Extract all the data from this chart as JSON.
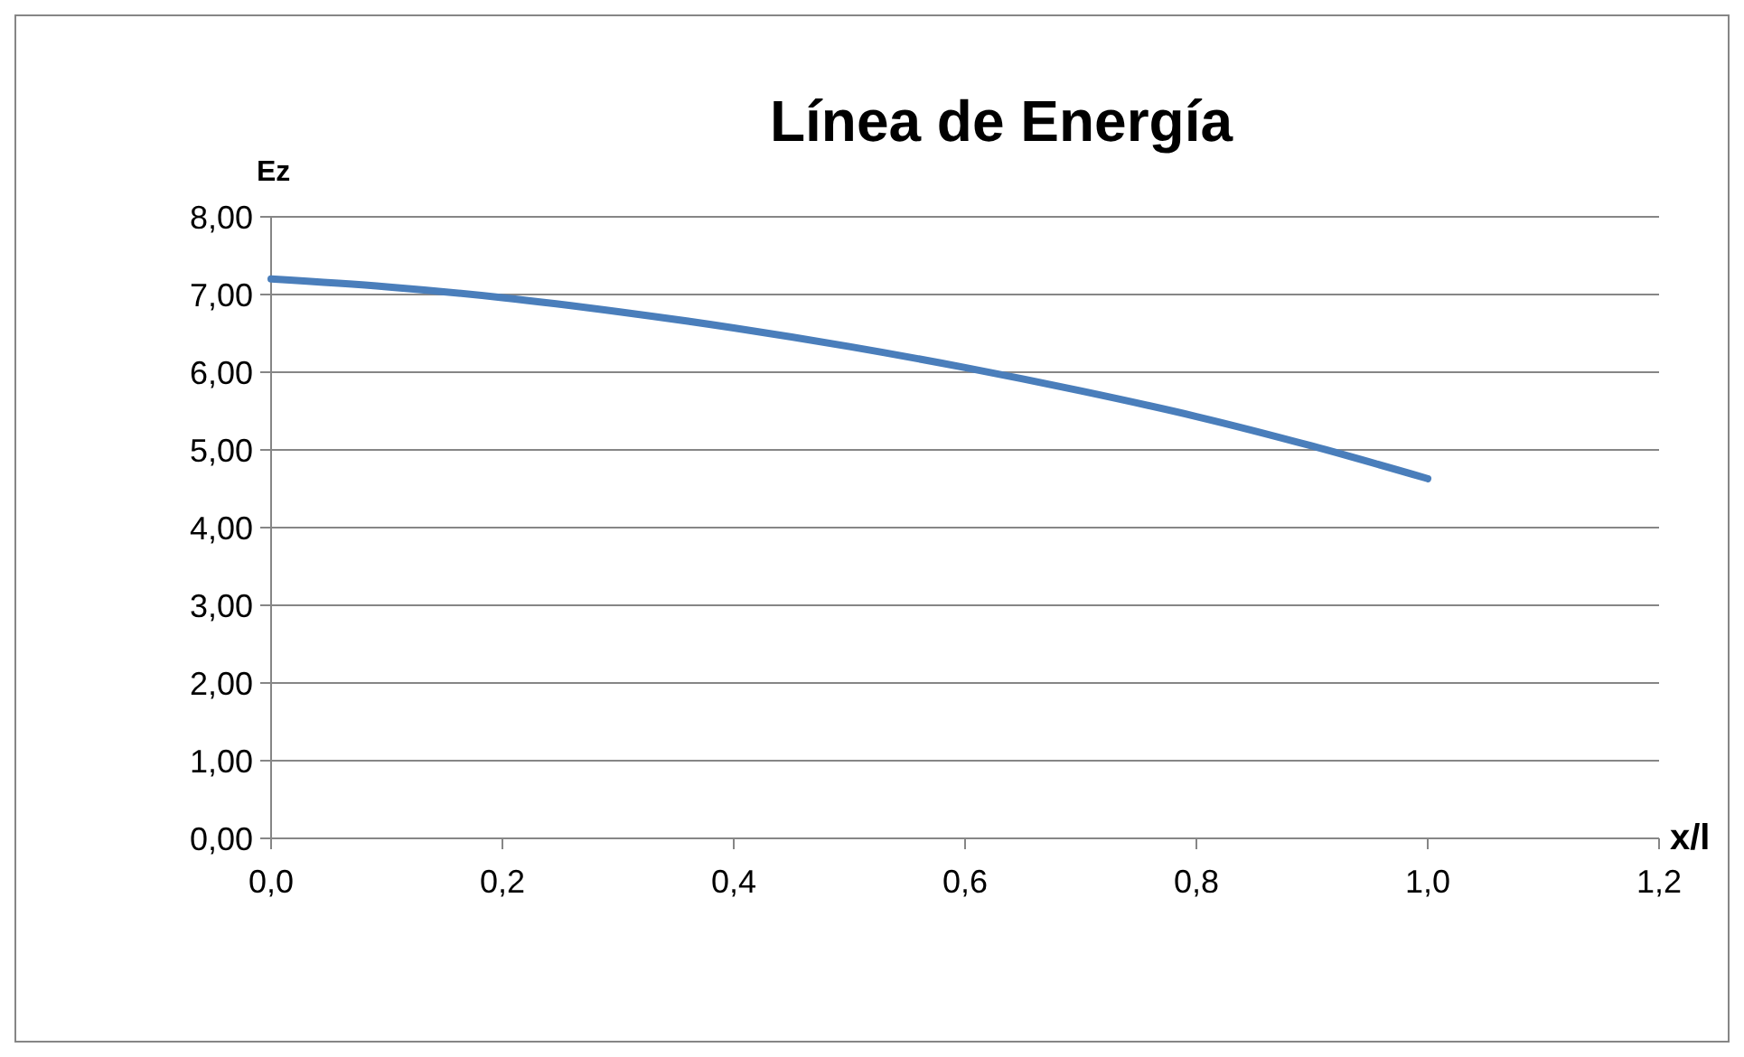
{
  "chart_data": {
    "type": "line",
    "title": "Línea de Energía",
    "xlabel": "x/l",
    "ylabel": "Ez",
    "x": [
      0,
      0.1,
      0.2,
      0.3,
      0.4,
      0.5,
      0.6,
      0.7,
      0.8,
      0.9,
      1.0
    ],
    "series": [
      {
        "color": "#4a7ebb",
        "values": [
          7.2,
          7.1,
          6.96,
          6.78,
          6.57,
          6.33,
          6.06,
          5.76,
          5.43,
          5.05,
          4.63
        ]
      }
    ],
    "xlim": [
      0,
      1.2
    ],
    "xticks": [
      {
        "value": 0,
        "label": "0,0"
      },
      {
        "value": 0.2,
        "label": "0,2"
      },
      {
        "value": 0.4,
        "label": "0,4"
      },
      {
        "value": 0.6,
        "label": "0,6"
      },
      {
        "value": 0.8,
        "label": "0,8"
      },
      {
        "value": 1,
        "label": "1,0"
      },
      {
        "value": 1.2,
        "label": "1,2"
      }
    ],
    "ylim": [
      0,
      8
    ],
    "yticks": [
      {
        "value": 0,
        "label": "0,00"
      },
      {
        "value": 1,
        "label": "1,00"
      },
      {
        "value": 2,
        "label": "2,00"
      },
      {
        "value": 3,
        "label": "3,00"
      },
      {
        "value": 4,
        "label": "4,00"
      },
      {
        "value": 5,
        "label": "5,00"
      },
      {
        "value": 6,
        "label": "6,00"
      },
      {
        "value": 7,
        "label": "7,00"
      },
      {
        "value": 8,
        "label": "8,00"
      }
    ],
    "grid": "y",
    "legend": false,
    "marker": "none",
    "line_style": "solid"
  }
}
